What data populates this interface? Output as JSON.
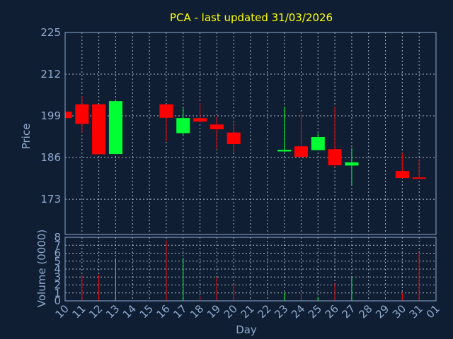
{
  "chart_data": [
    {
      "type": "candlestick",
      "title": "PCA - last updated 31/03/2026",
      "ylabel": "Price",
      "ylim": [
        162,
        225
      ],
      "yticks": [
        173,
        186,
        199,
        212,
        225
      ],
      "grid": true,
      "colors": {
        "up": "#00ff33",
        "down": "#ff0000"
      },
      "candles": [
        {
          "day": "10",
          "open": 200.3,
          "high": 200.3,
          "low": 198.0,
          "close": 198.3
        },
        {
          "day": "11",
          "open": 202.6,
          "high": 205.2,
          "low": 193.7,
          "close": 196.5
        },
        {
          "day": "12",
          "open": 202.6,
          "high": 202.6,
          "low": 187.0,
          "close": 187.0
        },
        {
          "day": "13",
          "open": 187.1,
          "high": 203.6,
          "low": 187.1,
          "close": 203.6
        },
        {
          "day": "16",
          "open": 202.6,
          "high": 202.6,
          "low": 191.0,
          "close": 198.4
        },
        {
          "day": "17",
          "open": 193.6,
          "high": 201.5,
          "low": 193.0,
          "close": 198.3
        },
        {
          "day": "18",
          "open": 198.3,
          "high": 203.0,
          "low": 197.2,
          "close": 197.2
        },
        {
          "day": "19",
          "open": 196.3,
          "high": 198.7,
          "low": 188.5,
          "close": 194.8
        },
        {
          "day": "20",
          "open": 193.8,
          "high": 197.2,
          "low": 187.4,
          "close": 190.2
        },
        {
          "day": "23",
          "open": 187.9,
          "high": 201.9,
          "low": 187.7,
          "close": 188.4
        },
        {
          "day": "24",
          "open": 189.5,
          "high": 199.8,
          "low": 186.0,
          "close": 186.2
        },
        {
          "day": "25",
          "open": 188.3,
          "high": 193.6,
          "low": 188.3,
          "close": 192.4
        },
        {
          "day": "26",
          "open": 188.6,
          "high": 201.9,
          "low": 183.0,
          "close": 183.6
        },
        {
          "day": "27",
          "open": 183.5,
          "high": 189.0,
          "low": 177.4,
          "close": 184.5
        },
        {
          "day": "30",
          "open": 181.8,
          "high": 187.4,
          "low": 179.5,
          "close": 179.6
        },
        {
          "day": "31",
          "open": 179.8,
          "high": 185.5,
          "low": 179.4,
          "close": 179.4
        }
      ]
    },
    {
      "type": "bar",
      "ylabel": "Volume (0000)",
      "ylim": [
        0,
        8
      ],
      "yticks": [
        0,
        1,
        2,
        3,
        4,
        5,
        6,
        7,
        8
      ],
      "xlabel": "Day",
      "xticks": [
        "10",
        "11",
        "12",
        "13",
        "14",
        "15",
        "16",
        "17",
        "18",
        "19",
        "20",
        "21",
        "22",
        "23",
        "24",
        "25",
        "26",
        "27",
        "28",
        "29",
        "30",
        "31",
        "01"
      ],
      "grid": true,
      "bars": [
        {
          "day": "10",
          "value": 0.05,
          "direction": "down"
        },
        {
          "day": "11",
          "value": 3.2,
          "direction": "down"
        },
        {
          "day": "12",
          "value": 3.3,
          "direction": "down"
        },
        {
          "day": "13",
          "value": 5.2,
          "direction": "up"
        },
        {
          "day": "16",
          "value": 7.6,
          "direction": "down"
        },
        {
          "day": "17",
          "value": 5.4,
          "direction": "up"
        },
        {
          "day": "18",
          "value": 0.6,
          "direction": "down"
        },
        {
          "day": "19",
          "value": 3.0,
          "direction": "down"
        },
        {
          "day": "20",
          "value": 2.1,
          "direction": "down"
        },
        {
          "day": "23",
          "value": 1.0,
          "direction": "up"
        },
        {
          "day": "24",
          "value": 1.0,
          "direction": "down"
        },
        {
          "day": "25",
          "value": 0.5,
          "direction": "up"
        },
        {
          "day": "26",
          "value": 2.2,
          "direction": "down"
        },
        {
          "day": "27",
          "value": 3.0,
          "direction": "up"
        },
        {
          "day": "30",
          "value": 1.0,
          "direction": "down"
        },
        {
          "day": "31",
          "value": 6.1,
          "direction": "down"
        }
      ]
    }
  ]
}
